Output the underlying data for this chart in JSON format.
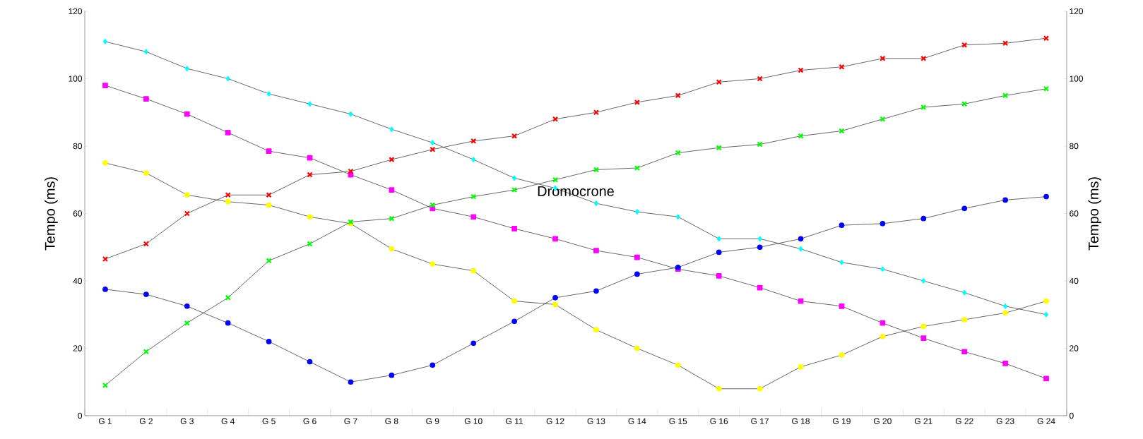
{
  "chart_data": {
    "type": "line",
    "ylabel": "Tempo (ms)",
    "y2label": "Tempo (ms)",
    "annotations": [
      "Dromocrone"
    ],
    "categories": [
      "G 1",
      "G 2",
      "G 3",
      "G 4",
      "G 5",
      "G 6",
      "G 7",
      "G 8",
      "G 9",
      "G 10",
      "G 11",
      "G 12",
      "G 13",
      "G 14",
      "G 15",
      "G 16",
      "G 17",
      "G 18",
      "G 19",
      "G 20",
      "G 21",
      "G 22",
      "G 23",
      "G 24"
    ],
    "ylim": [
      0,
      120
    ],
    "yticks": [
      0,
      20,
      40,
      60,
      80,
      100,
      120
    ],
    "y2lim": [
      0,
      120
    ],
    "y2ticks": [
      0,
      20,
      40,
      60,
      80,
      100,
      120
    ],
    "grid": false,
    "series": [
      {
        "color": "#00ffff",
        "marker": "diamond",
        "values": [
          111,
          108,
          103,
          100,
          95.5,
          92.5,
          89.5,
          85,
          81,
          76,
          70.5,
          67.5,
          63,
          60.5,
          59,
          52.5,
          52.5,
          49.5,
          45.5,
          43.5,
          40,
          36.5,
          32.5,
          30
        ]
      },
      {
        "color": "#ff00ff",
        "marker": "square",
        "values": [
          98,
          94,
          89.5,
          84,
          78.5,
          76.5,
          71.5,
          67,
          61.5,
          59,
          55.5,
          52.5,
          49,
          47,
          43.5,
          41.5,
          38,
          34,
          32.5,
          27.5,
          23,
          19,
          15.5,
          11
        ]
      },
      {
        "color": "#ffff00",
        "marker": "circle",
        "values": [
          75,
          72,
          65.5,
          63.5,
          62.5,
          59,
          57,
          49.5,
          45,
          43,
          34,
          33,
          25.5,
          20,
          15,
          8,
          8,
          14.5,
          18,
          23.5,
          26.5,
          28.5,
          30.5,
          34
        ]
      },
      {
        "color": "#ff0000",
        "marker": "cross",
        "values": [
          46.5,
          51,
          60,
          65.5,
          65.5,
          71.5,
          72.5,
          76,
          79,
          81.5,
          83,
          88,
          90,
          93,
          95,
          99,
          100,
          102.5,
          103.5,
          106,
          106,
          110,
          110.5,
          112
        ]
      },
      {
        "color": "#00ff00",
        "marker": "cross",
        "values": [
          9,
          19,
          27.5,
          35,
          46,
          51,
          57.5,
          58.5,
          62.5,
          65,
          67,
          70,
          73,
          73.5,
          78,
          79.5,
          80.5,
          83,
          84.5,
          88,
          91.5,
          92.5,
          95,
          97
        ]
      },
      {
        "color": "#0000ff",
        "marker": "circle",
        "values": [
          37.5,
          36,
          32.5,
          27.5,
          22,
          16,
          10,
          12,
          15,
          21.5,
          28,
          35,
          37,
          42,
          44,
          48.5,
          50,
          52.5,
          56.5,
          57,
          58.5,
          61.5,
          64,
          65
        ]
      }
    ]
  }
}
